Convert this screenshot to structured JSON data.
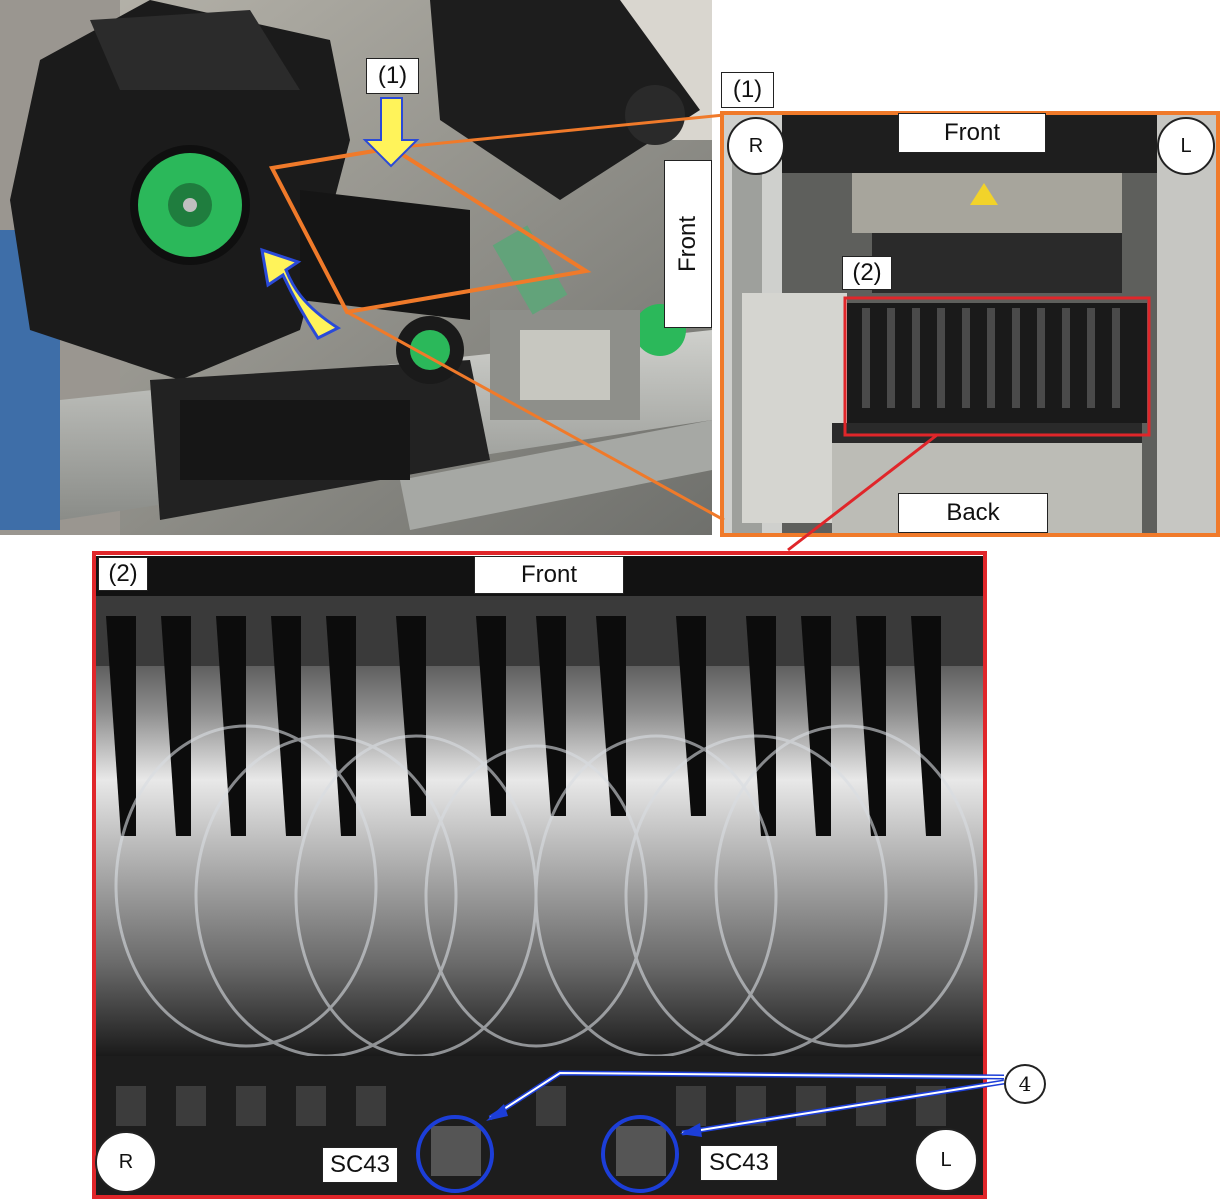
{
  "labels": {
    "callout_1": "(1)",
    "callout_2": "(2)",
    "front": "Front",
    "back": "Back",
    "right": "R",
    "left": "L",
    "sensor": "SC43",
    "part_number": "4"
  },
  "colors": {
    "orange_frame": "#f07a2a",
    "red_frame": "#e0262a",
    "blue_marker": "#1c3ed8",
    "yellow_arrow": "#fff35a",
    "green_part": "#2bb85a"
  }
}
